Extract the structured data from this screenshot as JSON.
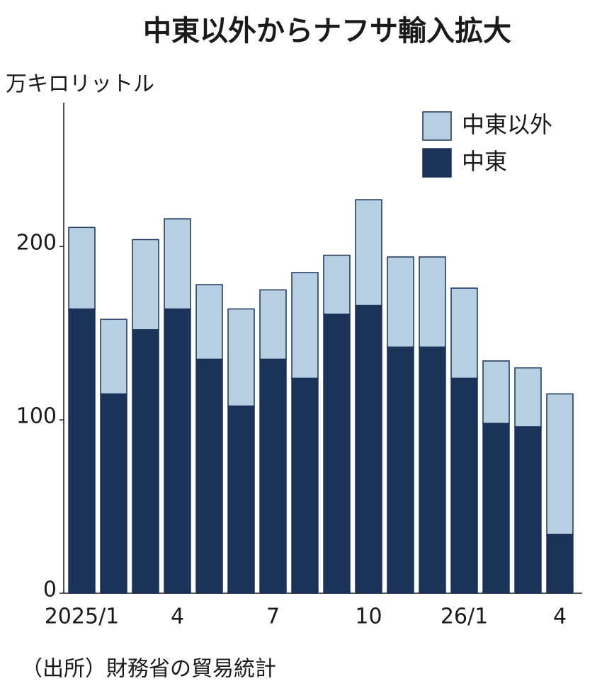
{
  "chart_data": {
    "type": "stacked_bar",
    "title": "中東以外からナフサ輸入拡大",
    "y_label": "万キロリットル",
    "source": "（出所）財務省の貿易統計",
    "categories": [
      "2025/1",
      null,
      null,
      "4",
      null,
      null,
      "7",
      null,
      null,
      "10",
      null,
      null,
      "26/1",
      null,
      null,
      "4"
    ],
    "series": [
      {
        "name": "中東",
        "color": "#1b3358",
        "values": [
          164,
          115,
          152,
          164,
          135,
          108,
          135,
          124,
          161,
          166,
          142,
          142,
          124,
          98,
          96,
          34
        ]
      },
      {
        "name": "中東以外",
        "color": "#b6cfe2",
        "values": [
          47,
          43,
          52,
          52,
          43,
          56,
          40,
          61,
          34,
          61,
          52,
          52,
          52,
          36,
          34,
          81
        ]
      }
    ],
    "ylim": [
      0,
      283
    ],
    "yticks": [
      0,
      100,
      200
    ],
    "grid": false,
    "legend": "top-right"
  }
}
